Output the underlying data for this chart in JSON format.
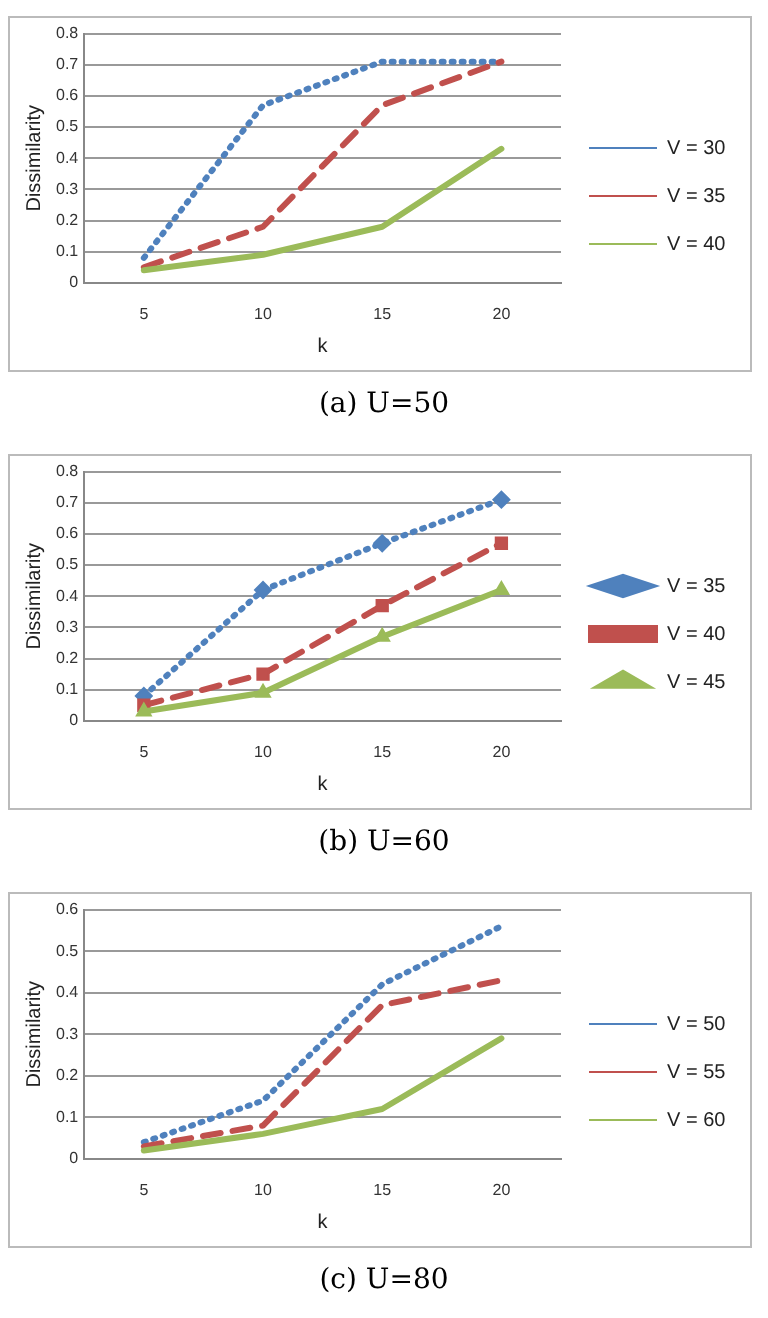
{
  "chart_data": [
    {
      "type": "line",
      "title": "(a)  U=50",
      "xlabel": "k",
      "ylabel": "Dissimilarity",
      "categories": [
        "5",
        "10",
        "15",
        "20"
      ],
      "ylim": [
        0,
        0.8
      ],
      "yticks": [
        0,
        0.1,
        0.2,
        0.3,
        0.4,
        0.5,
        0.6,
        0.7,
        0.8
      ],
      "grid": "y",
      "legend": "right",
      "series": [
        {
          "name": "V = 30",
          "color": "#4f81bd",
          "line_style": "dotted",
          "marker": "none",
          "values": [
            0.08,
            0.57,
            0.71,
            0.71
          ]
        },
        {
          "name": "V = 35",
          "color": "#c0504d",
          "line_style": "dashed",
          "marker": "none",
          "values": [
            0.05,
            0.18,
            0.57,
            0.71
          ]
        },
        {
          "name": "V = 40",
          "color": "#9bbb59",
          "line_style": "solid",
          "marker": "none",
          "values": [
            0.04,
            0.09,
            0.18,
            0.43
          ]
        }
      ]
    },
    {
      "type": "line",
      "title": "(b)  U=60",
      "xlabel": "k",
      "ylabel": "Dissimilarity",
      "categories": [
        "5",
        "10",
        "15",
        "20"
      ],
      "ylim": [
        0,
        0.8
      ],
      "yticks": [
        0,
        0.1,
        0.2,
        0.3,
        0.4,
        0.5,
        0.6,
        0.7,
        0.8
      ],
      "grid": "y",
      "legend": "right",
      "series": [
        {
          "name": "V = 35",
          "color": "#4f81bd",
          "line_style": "dotted",
          "marker": "diamond",
          "values": [
            0.08,
            0.42,
            0.57,
            0.71
          ]
        },
        {
          "name": "V = 40",
          "color": "#c0504d",
          "line_style": "dashed",
          "marker": "square",
          "values": [
            0.05,
            0.15,
            0.37,
            0.57
          ]
        },
        {
          "name": "V = 45",
          "color": "#9bbb59",
          "line_style": "solid",
          "marker": "triangle",
          "values": [
            0.03,
            0.09,
            0.27,
            0.42
          ]
        }
      ]
    },
    {
      "type": "line",
      "title": "(c)  U=80",
      "xlabel": "k",
      "ylabel": "Dissimilarity",
      "categories": [
        "5",
        "10",
        "15",
        "20"
      ],
      "ylim": [
        0,
        0.6
      ],
      "yticks": [
        0,
        0.1,
        0.2,
        0.3,
        0.4,
        0.5,
        0.6
      ],
      "grid": "y",
      "legend": "right",
      "series": [
        {
          "name": "V = 50",
          "color": "#4f81bd",
          "line_style": "dotted",
          "marker": "none",
          "values": [
            0.04,
            0.14,
            0.42,
            0.56
          ]
        },
        {
          "name": "V = 55",
          "color": "#c0504d",
          "line_style": "dashed",
          "marker": "none",
          "values": [
            0.03,
            0.08,
            0.37,
            0.43
          ]
        },
        {
          "name": "V = 60",
          "color": "#9bbb59",
          "line_style": "solid",
          "marker": "none",
          "values": [
            0.02,
            0.06,
            0.12,
            0.29
          ]
        }
      ]
    }
  ]
}
